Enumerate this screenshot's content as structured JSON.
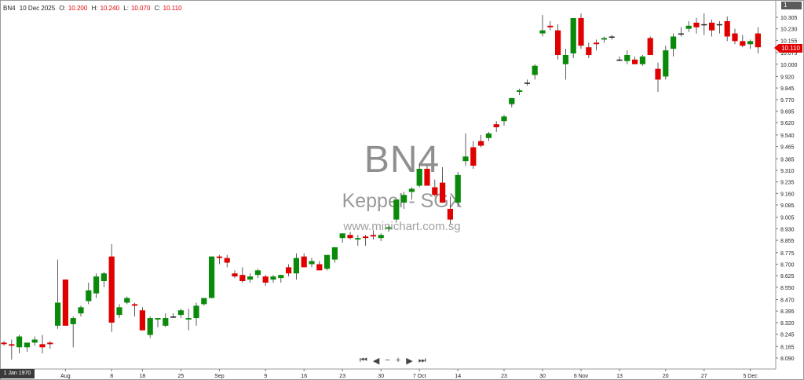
{
  "header": {
    "symbol": "BN4",
    "date": "10 Dec 2025",
    "open_label": "O:",
    "open": "10.200",
    "high_label": "H:",
    "high": "10.240",
    "low_label": "L:",
    "low": "10.070",
    "close_label": "C:",
    "close": "10.110"
  },
  "watermark": {
    "title": "BN4",
    "subtitle": "Keppel - SGX",
    "site": "www.minichart.com.sg"
  },
  "corner_badge": "1",
  "price_tag": "10.110",
  "date_badge": "1 Jan 1970",
  "nav": {
    "first": "⏮",
    "prev": "◀",
    "zoom_out": "−",
    "zoom_in": "+",
    "next": "▶",
    "last": "⏭"
  },
  "chart_data": {
    "type": "candlestick",
    "ylim": [
      8.05,
      10.35
    ],
    "y_ticks": [
      "10.305",
      "10.230",
      "10.155",
      "10.075",
      "10.000",
      "9.920",
      "9.845",
      "9.770",
      "9.695",
      "9.620",
      "9.540",
      "9.465",
      "9.385",
      "9.310",
      "9.235",
      "9.160",
      "9.085",
      "9.005",
      "8.930",
      "8.855",
      "8.775",
      "8.700",
      "8.625",
      "8.550",
      "8.470",
      "8.395",
      "8.320",
      "8.245",
      "8.165",
      "8.090"
    ],
    "x_labels": [
      "25",
      "Aug",
      "8",
      "18",
      "25",
      "Sep",
      "9",
      "16",
      "23",
      "30",
      "7 Oct",
      "14",
      "23",
      "30",
      "6 Nov",
      "13",
      "20",
      "27",
      "5 Dec"
    ],
    "x_label_bar_index": [
      2,
      8,
      14,
      18,
      23,
      28,
      34,
      39,
      44,
      49,
      54,
      59,
      65,
      70,
      75,
      80,
      86,
      91,
      97
    ],
    "colors": {
      "up": "#0a8a0a",
      "down": "#e00000",
      "neutral": "#222222"
    },
    "candles": [
      [
        8.19,
        8.2,
        8.17,
        8.18
      ],
      [
        8.18,
        8.21,
        8.08,
        8.17
      ],
      [
        8.16,
        8.24,
        8.12,
        8.23
      ],
      [
        8.16,
        8.19,
        8.13,
        8.19
      ],
      [
        8.19,
        8.23,
        8.17,
        8.21
      ],
      [
        8.18,
        8.24,
        8.12,
        8.16
      ],
      [
        8.19,
        8.2,
        8.15,
        8.18
      ],
      [
        8.3,
        8.73,
        8.28,
        8.45
      ],
      [
        8.6,
        8.6,
        8.3,
        8.3
      ],
      [
        8.31,
        8.36,
        8.16,
        8.35
      ],
      [
        8.38,
        8.43,
        8.36,
        8.42
      ],
      [
        8.46,
        8.58,
        8.44,
        8.53
      ],
      [
        8.51,
        8.64,
        8.48,
        8.62
      ],
      [
        8.59,
        8.65,
        8.55,
        8.64
      ],
      [
        8.75,
        8.83,
        8.26,
        8.32
      ],
      [
        8.37,
        8.44,
        8.35,
        8.42
      ],
      [
        8.45,
        8.49,
        8.44,
        8.48
      ],
      [
        8.44,
        8.45,
        8.36,
        8.43
      ],
      [
        8.4,
        8.42,
        8.27,
        8.27
      ],
      [
        8.24,
        8.36,
        8.22,
        8.35
      ],
      [
        8.34,
        8.35,
        8.29,
        8.35
      ],
      [
        8.3,
        8.38,
        8.29,
        8.35
      ],
      [
        8.36,
        8.38,
        8.35,
        8.36
      ],
      [
        8.37,
        8.41,
        8.35,
        8.4
      ],
      [
        8.34,
        8.41,
        8.27,
        8.35
      ],
      [
        8.35,
        8.45,
        8.3,
        8.43
      ],
      [
        8.44,
        8.48,
        8.43,
        8.48
      ],
      [
        8.48,
        8.75,
        8.48,
        8.75
      ],
      [
        8.75,
        8.76,
        8.7,
        8.74
      ],
      [
        8.74,
        8.76,
        8.68,
        8.71
      ],
      [
        8.64,
        8.66,
        8.61,
        8.62
      ],
      [
        8.63,
        8.68,
        8.58,
        8.59
      ],
      [
        8.6,
        8.64,
        8.58,
        8.62
      ],
      [
        8.63,
        8.67,
        8.61,
        8.66
      ],
      [
        8.62,
        8.63,
        8.56,
        8.58
      ],
      [
        8.6,
        8.63,
        8.58,
        8.62
      ],
      [
        8.61,
        8.63,
        8.58,
        8.63
      ],
      [
        8.68,
        8.7,
        8.62,
        8.64
      ],
      [
        8.64,
        8.77,
        8.6,
        8.74
      ],
      [
        8.75,
        8.77,
        8.68,
        8.68
      ],
      [
        8.7,
        8.74,
        8.68,
        8.72
      ],
      [
        8.7,
        8.72,
        8.66,
        8.66
      ],
      [
        8.67,
        8.76,
        8.66,
        8.76
      ],
      [
        8.73,
        8.81,
        8.71,
        8.81
      ],
      [
        8.87,
        8.9,
        8.84,
        8.9
      ],
      [
        8.89,
        8.91,
        8.86,
        8.87
      ],
      [
        8.86,
        8.89,
        8.82,
        8.87
      ],
      [
        8.88,
        8.89,
        8.82,
        8.87
      ],
      [
        8.89,
        8.92,
        8.86,
        8.88
      ],
      [
        8.87,
        8.9,
        8.85,
        8.89
      ],
      [
        8.93,
        8.95,
        8.91,
        8.94
      ],
      [
        8.99,
        9.12,
        8.97,
        9.12
      ],
      [
        9.1,
        9.17,
        9.06,
        9.15
      ],
      [
        9.17,
        9.2,
        9.12,
        9.19
      ],
      [
        9.21,
        9.35,
        9.2,
        9.32
      ],
      [
        9.32,
        9.34,
        9.21,
        9.21
      ],
      [
        9.2,
        9.25,
        9.14,
        9.15
      ],
      [
        9.23,
        9.33,
        9.1,
        9.1
      ],
      [
        9.06,
        9.14,
        8.96,
        8.99
      ],
      [
        9.1,
        9.3,
        9.07,
        9.28
      ],
      [
        9.37,
        9.55,
        9.34,
        9.4
      ],
      [
        9.46,
        9.5,
        9.32,
        9.34
      ],
      [
        9.5,
        9.54,
        9.46,
        9.47
      ],
      [
        9.52,
        9.56,
        9.5,
        9.55
      ],
      [
        9.61,
        9.63,
        9.56,
        9.59
      ],
      [
        9.63,
        9.67,
        9.6,
        9.66
      ],
      [
        9.74,
        9.78,
        9.72,
        9.78
      ],
      [
        9.82,
        9.84,
        9.8,
        9.83
      ],
      [
        9.88,
        9.9,
        9.86,
        9.88
      ],
      [
        9.93,
        10.0,
        9.9,
        9.99
      ],
      [
        10.2,
        10.32,
        10.18,
        10.22
      ],
      [
        10.25,
        10.28,
        10.22,
        10.24
      ],
      [
        10.22,
        10.26,
        10.03,
        10.06
      ],
      [
        10.0,
        10.1,
        9.9,
        10.06
      ],
      [
        10.07,
        10.3,
        10.04,
        10.3
      ],
      [
        10.3,
        10.33,
        10.1,
        10.12
      ],
      [
        10.11,
        10.14,
        10.04,
        10.06
      ],
      [
        10.14,
        10.16,
        10.09,
        10.13
      ],
      [
        10.16,
        10.18,
        10.14,
        10.17
      ],
      [
        10.18,
        10.19,
        10.16,
        10.18
      ],
      [
        10.03,
        10.05,
        10.02,
        10.03
      ],
      [
        10.02,
        10.09,
        10.0,
        10.06
      ],
      [
        10.03,
        10.05,
        10.0,
        10.0
      ],
      [
        10.0,
        10.06,
        9.99,
        10.05
      ],
      [
        10.17,
        10.18,
        10.06,
        10.06
      ],
      [
        9.97,
        10.01,
        9.82,
        9.9
      ],
      [
        9.92,
        10.12,
        9.9,
        10.09
      ],
      [
        10.1,
        10.2,
        10.05,
        10.18
      ],
      [
        10.2,
        10.24,
        10.18,
        10.2
      ],
      [
        10.23,
        10.28,
        10.21,
        10.25
      ],
      [
        10.27,
        10.3,
        10.2,
        10.24
      ],
      [
        10.26,
        10.33,
        10.19,
        10.26
      ],
      [
        10.27,
        10.29,
        10.18,
        10.22
      ],
      [
        10.26,
        10.28,
        10.2,
        10.26
      ],
      [
        10.28,
        10.31,
        10.15,
        10.18
      ],
      [
        10.2,
        10.23,
        10.13,
        10.15
      ],
      [
        10.15,
        10.19,
        10.11,
        10.12
      ],
      [
        10.13,
        10.16,
        10.1,
        10.15
      ],
      [
        10.2,
        10.24,
        10.07,
        10.11
      ]
    ]
  }
}
